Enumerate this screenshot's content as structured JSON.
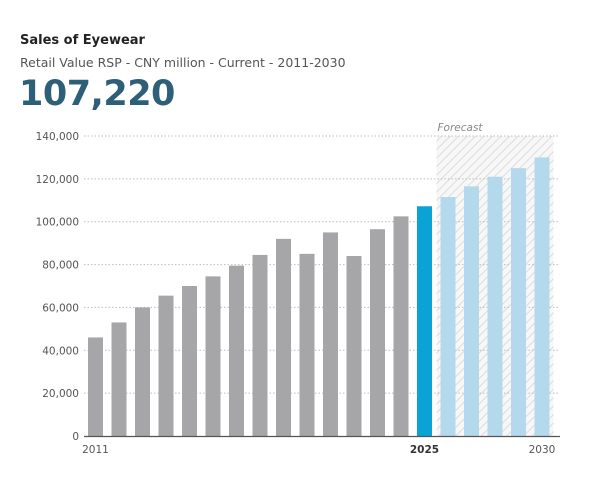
{
  "title": "Sales of Eyewear",
  "subtitle": "Retail Value RSP - CNY million - Current - 2011-2030",
  "headline_value": "107,220",
  "colors": {
    "historic": "#a6a6a8",
    "current": "#0aa3d4",
    "forecast": "#b4d9ec",
    "headline": "#2e5f79"
  },
  "chart_data": {
    "type": "bar",
    "title": "Sales of Eyewear",
    "subtitle": "Retail Value RSP - CNY million - Current - 2011-2030",
    "ylim": [
      0,
      140000
    ],
    "yticks": [
      0,
      20000,
      40000,
      60000,
      80000,
      100000,
      120000,
      140000
    ],
    "ytick_labels": [
      "0",
      "20,000",
      "40,000",
      "60,000",
      "80,000",
      "100,000",
      "120,000",
      "140,000"
    ],
    "grid": true,
    "forecast_label": "Forecast",
    "forecast_start": 2026,
    "current_year": 2025,
    "x_labels": [
      {
        "year": 2011,
        "label": "2011",
        "bold": false
      },
      {
        "year": 2025,
        "label": "2025",
        "bold": true
      },
      {
        "year": 2030,
        "label": "2030",
        "bold": false
      }
    ],
    "categories": [
      2011,
      2012,
      2013,
      2014,
      2015,
      2016,
      2017,
      2018,
      2019,
      2020,
      2021,
      2022,
      2023,
      2024,
      2025,
      2026,
      2027,
      2028,
      2029,
      2030
    ],
    "values": [
      46000,
      53000,
      60000,
      65500,
      70000,
      74500,
      79500,
      84500,
      92000,
      85000,
      95000,
      84000,
      96500,
      102500,
      107220,
      111500,
      116500,
      121000,
      125000,
      130000
    ]
  }
}
